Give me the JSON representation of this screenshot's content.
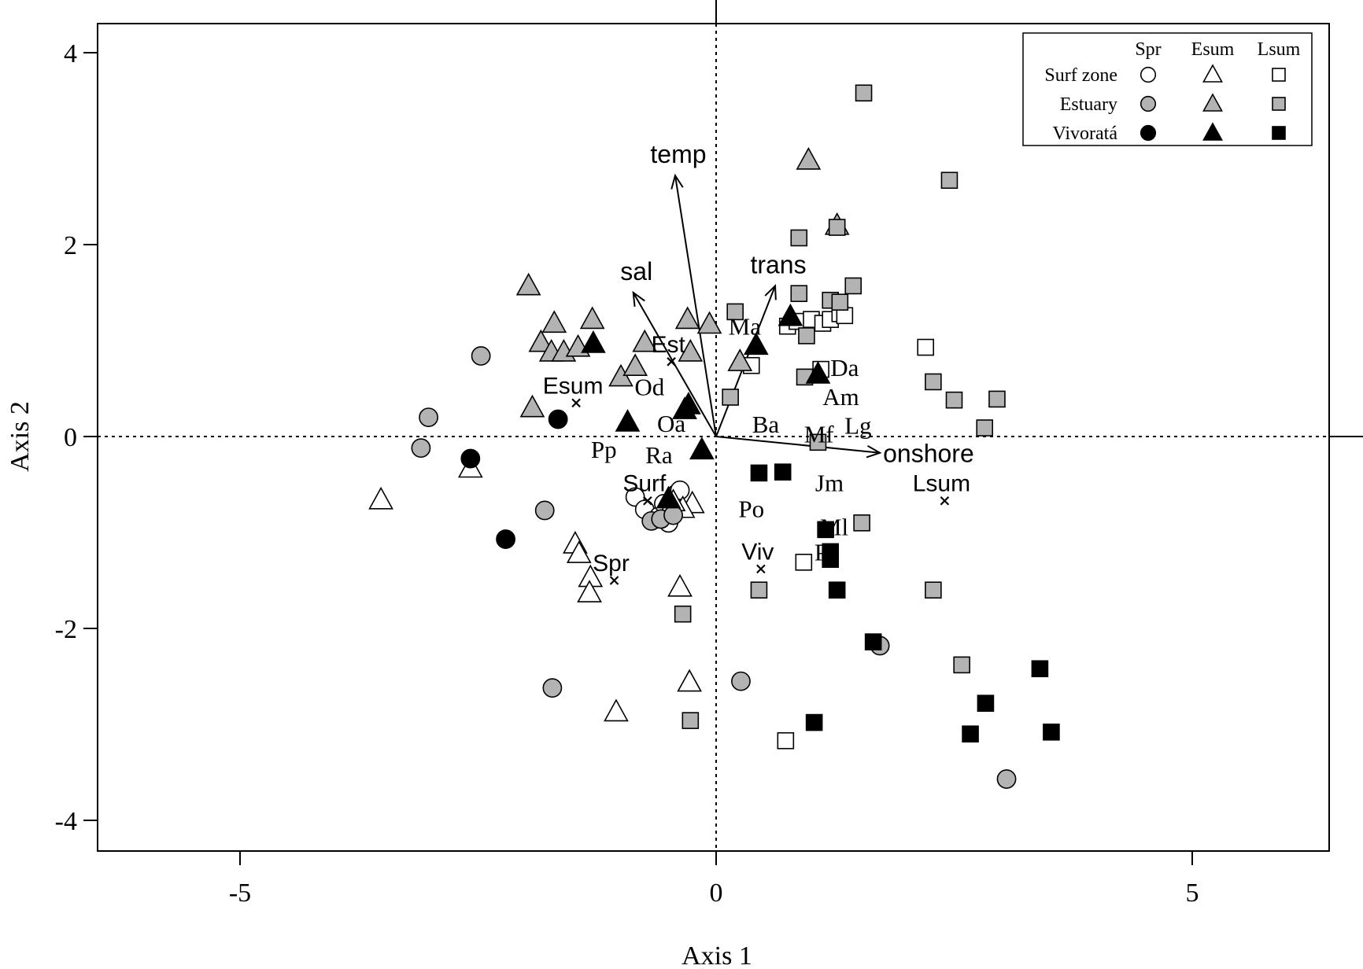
{
  "chart_data": {
    "type": "scatter",
    "title": "",
    "xlabel": "Axis 1",
    "ylabel": "Axis 2",
    "xlim": [
      -6.5,
      6.4
    ],
    "ylim": [
      -4.45,
      4.4
    ],
    "xticks": [
      -5,
      0,
      5
    ],
    "yticks": [
      4,
      2,
      0,
      -2,
      -4
    ],
    "xtick_labels": [
      "-5",
      "0",
      "5"
    ],
    "ytick_labels": [
      "4",
      "2",
      "0",
      "-2",
      "-4"
    ],
    "reference_lines": {
      "x": 0,
      "y": 0,
      "style": "dotted"
    },
    "legend": {
      "position": "top-right",
      "column_headers": [
        "Spr",
        "Esum",
        "Lsum"
      ],
      "row_labels": [
        "Surf zone",
        "Estuary",
        "Vivoratá"
      ]
    },
    "marker_by_season": {
      "Spr": "circle",
      "Esum": "triangle",
      "Lsum": "square"
    },
    "fill_by_site": {
      "Surf zone": "#ffffff",
      "Estuary": "#b3b3b3",
      "Vivoratá": "#000000"
    },
    "series": [
      {
        "site": "Surf zone",
        "season": "Spr",
        "points": [
          [
            -0.85,
            -0.63
          ],
          [
            -0.75,
            -0.76
          ],
          [
            -0.6,
            -0.83
          ],
          [
            -0.52,
            -0.85
          ],
          [
            -0.45,
            -0.77
          ],
          [
            -0.42,
            -0.6
          ],
          [
            -0.38,
            -0.56
          ],
          [
            -0.55,
            -0.7
          ],
          [
            -0.5,
            -0.9
          ]
        ]
      },
      {
        "site": "Surf zone",
        "season": "Esum",
        "points": [
          [
            -3.52,
            -0.66
          ],
          [
            -2.58,
            -0.33
          ],
          [
            -1.48,
            -1.12
          ],
          [
            -1.44,
            -1.22
          ],
          [
            -1.32,
            -1.47
          ],
          [
            -1.33,
            -1.63
          ],
          [
            -1.05,
            -2.87
          ],
          [
            -0.38,
            -1.57
          ],
          [
            -0.28,
            -2.56
          ],
          [
            -0.25,
            -0.7
          ],
          [
            -0.35,
            -0.75
          ],
          [
            -0.45,
            -0.68
          ]
        ]
      },
      {
        "site": "Surf zone",
        "season": "Lsum",
        "points": [
          [
            0.37,
            0.74
          ],
          [
            0.75,
            1.15
          ],
          [
            0.85,
            1.2
          ],
          [
            1.0,
            1.22
          ],
          [
            1.12,
            1.18
          ],
          [
            1.2,
            1.22
          ],
          [
            1.3,
            1.28
          ],
          [
            1.35,
            1.26
          ],
          [
            1.1,
            0.7
          ],
          [
            2.2,
            0.93
          ],
          [
            0.92,
            -1.31
          ],
          [
            0.73,
            -3.17
          ]
        ]
      },
      {
        "site": "Estuary",
        "season": "Spr",
        "points": [
          [
            -2.47,
            0.84
          ],
          [
            -3.02,
            0.2
          ],
          [
            -3.1,
            -0.12
          ],
          [
            -1.8,
            -0.77
          ],
          [
            -1.72,
            -2.62
          ],
          [
            -0.68,
            -0.88
          ],
          [
            -0.58,
            -0.86
          ],
          [
            -0.45,
            -0.82
          ],
          [
            0.26,
            -2.55
          ],
          [
            1.72,
            -2.18
          ],
          [
            3.05,
            -3.57
          ]
        ]
      },
      {
        "site": "Estuary",
        "season": "Esum",
        "points": [
          [
            -1.97,
            1.57
          ],
          [
            -1.7,
            1.18
          ],
          [
            -1.84,
            0.98
          ],
          [
            -1.73,
            0.88
          ],
          [
            -1.6,
            0.88
          ],
          [
            -1.45,
            0.93
          ],
          [
            -1.3,
            1.22
          ],
          [
            -1.0,
            0.62
          ],
          [
            -0.85,
            0.73
          ],
          [
            -0.75,
            0.98
          ],
          [
            -1.93,
            0.3
          ],
          [
            -0.3,
            1.22
          ],
          [
            -0.07,
            1.17
          ],
          [
            -0.27,
            0.88
          ],
          [
            0.25,
            0.78
          ],
          [
            0.97,
            2.88
          ],
          [
            1.27,
            2.2
          ]
        ]
      },
      {
        "site": "Estuary",
        "season": "Lsum",
        "points": [
          [
            1.55,
            3.58
          ],
          [
            2.45,
            2.67
          ],
          [
            0.87,
            2.07
          ],
          [
            1.27,
            2.18
          ],
          [
            1.44,
            1.57
          ],
          [
            0.87,
            1.49
          ],
          [
            1.2,
            1.42
          ],
          [
            1.3,
            1.4
          ],
          [
            0.2,
            1.3
          ],
          [
            0.95,
            1.05
          ],
          [
            0.93,
            0.62
          ],
          [
            2.28,
            0.57
          ],
          [
            2.5,
            0.38
          ],
          [
            2.95,
            0.39
          ],
          [
            2.82,
            0.09
          ],
          [
            1.07,
            -0.06
          ],
          [
            1.53,
            -0.9
          ],
          [
            0.45,
            -1.6
          ],
          [
            2.28,
            -1.6
          ],
          [
            -0.35,
            -1.85
          ],
          [
            2.58,
            -2.38
          ],
          [
            -0.27,
            -2.96
          ],
          [
            0.15,
            0.41
          ]
        ]
      },
      {
        "site": "Vivoratá",
        "season": "Spr",
        "points": [
          [
            -1.66,
            0.18
          ],
          [
            -2.58,
            -0.23
          ],
          [
            -2.21,
            -1.07
          ]
        ]
      },
      {
        "site": "Vivoratá",
        "season": "Esum",
        "points": [
          [
            -1.29,
            0.97
          ],
          [
            -0.93,
            0.15
          ],
          [
            -0.33,
            0.28
          ],
          [
            -0.29,
            0.33
          ],
          [
            -0.15,
            -0.14
          ],
          [
            -0.5,
            -0.65
          ],
          [
            0.42,
            0.95
          ],
          [
            0.78,
            1.25
          ],
          [
            1.07,
            0.65
          ]
        ]
      },
      {
        "site": "Vivoratá",
        "season": "Lsum",
        "points": [
          [
            0.45,
            -0.38
          ],
          [
            0.7,
            -0.37
          ],
          [
            1.15,
            -0.97
          ],
          [
            1.2,
            -1.2
          ],
          [
            1.2,
            -1.28
          ],
          [
            1.27,
            -1.6
          ],
          [
            1.65,
            -2.14
          ],
          [
            1.03,
            -2.98
          ],
          [
            2.83,
            -2.78
          ],
          [
            2.67,
            -3.1
          ],
          [
            3.4,
            -2.42
          ],
          [
            3.52,
            -3.08
          ]
        ]
      }
    ],
    "centroids": [
      {
        "label": "Esum",
        "x": -1.47,
        "y": 0.35
      },
      {
        "label": "Est",
        "x": -0.47,
        "y": 0.78
      },
      {
        "label": "Surf",
        "x": -0.72,
        "y": -0.67
      },
      {
        "label": "Spr",
        "x": -1.07,
        "y": -1.5
      },
      {
        "label": "Viv",
        "x": 0.47,
        "y": -1.38
      },
      {
        "label": "Lsum",
        "x": 2.4,
        "y": -0.67
      }
    ],
    "species_labels": [
      {
        "label": "Ma",
        "x": 0.3,
        "y": 1.15
      },
      {
        "label": "Od",
        "x": -0.7,
        "y": 0.52
      },
      {
        "label": "Da",
        "x": 1.35,
        "y": 0.72
      },
      {
        "label": "Am",
        "x": 1.31,
        "y": 0.42
      },
      {
        "label": "Lg",
        "x": 1.49,
        "y": 0.12
      },
      {
        "label": "Oa",
        "x": -0.47,
        "y": 0.14
      },
      {
        "label": "Ba",
        "x": 0.52,
        "y": 0.13
      },
      {
        "label": "Mf",
        "x": 1.08,
        "y": 0.03
      },
      {
        "label": "Pp",
        "x": -1.18,
        "y": -0.13
      },
      {
        "label": "Ra",
        "x": -0.6,
        "y": -0.19
      },
      {
        "label": "Jm",
        "x": 1.19,
        "y": -0.48
      },
      {
        "label": "Po",
        "x": 0.37,
        "y": -0.75
      },
      {
        "label": "Ml",
        "x": 1.24,
        "y": -0.94
      },
      {
        "label": "Pc",
        "x": 1.16,
        "y": -1.2
      }
    ],
    "vectors": [
      {
        "label": "temp",
        "x": -0.43,
        "y": 2.72
      },
      {
        "label": "sal",
        "x": -0.87,
        "y": 1.5
      },
      {
        "label": "trans",
        "x": 0.62,
        "y": 1.57
      },
      {
        "label": "onshore",
        "x": 1.72,
        "y": -0.17
      }
    ]
  }
}
